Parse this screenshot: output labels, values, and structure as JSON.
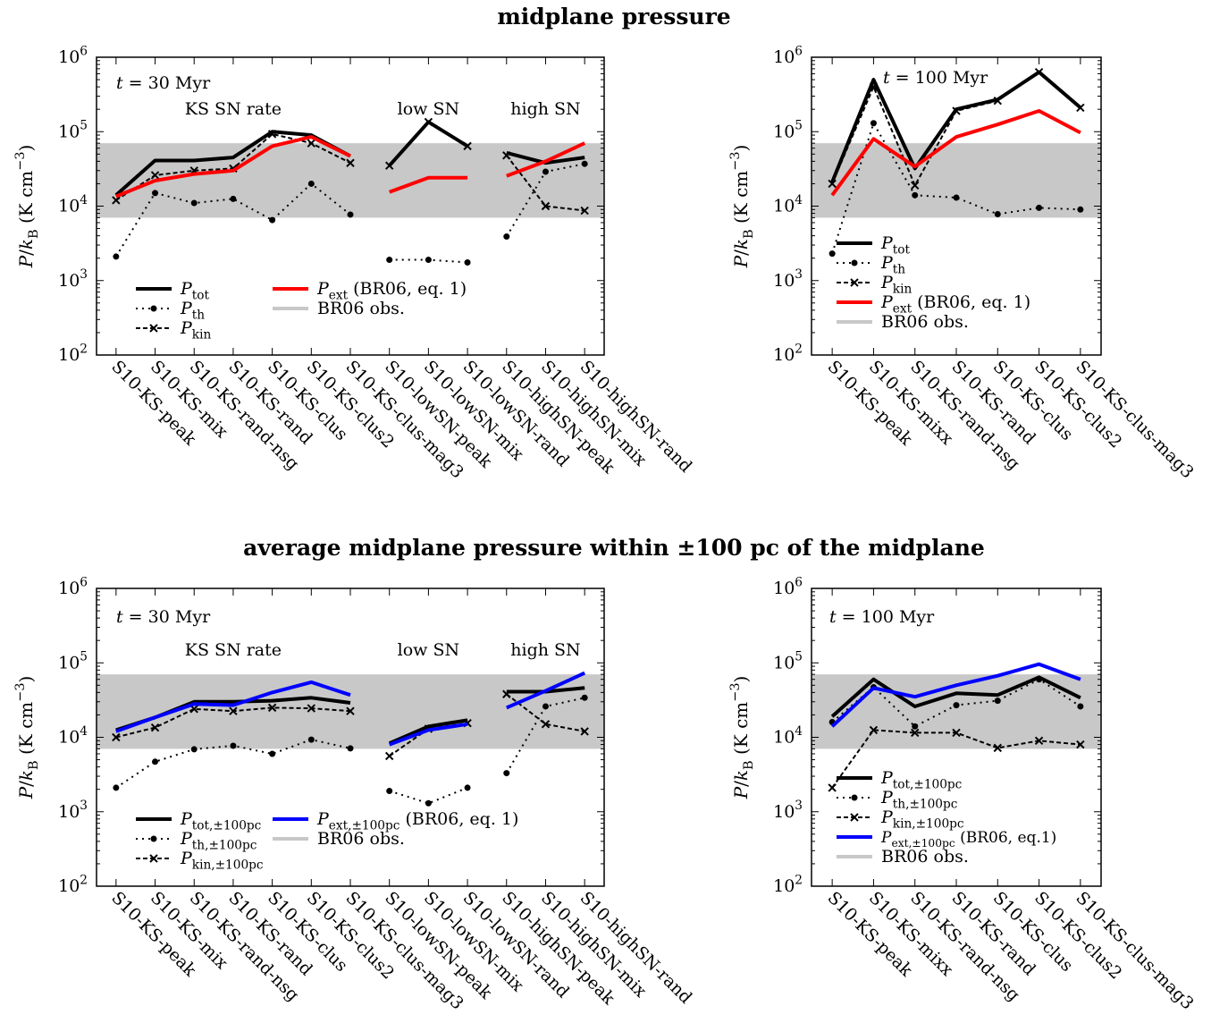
{
  "titles": {
    "top": "midplane pressure",
    "bottom": "average midplane pressure within ±100 pc of the midplane"
  },
  "colors": {
    "total": "#000000",
    "ext_top": "#ff0000",
    "ext_bottom": "#0000ff",
    "obs_band": "#c8c8c8"
  },
  "ylabel": "P/k_B (K cm^-3)",
  "yticks": [
    "10^2",
    "10^3",
    "10^4",
    "10^5",
    "10^6"
  ],
  "chart_data": [
    {
      "type": "line",
      "title": "midplane pressure",
      "panel_label": "t = 30 Myr",
      "group_labels": [
        "KS SN rate",
        "low SN",
        "high SN"
      ],
      "yscale": "log",
      "ylim": [
        100,
        1000000
      ],
      "obs_band": [
        7000,
        70000
      ],
      "categories": [
        "S10-KS-peak",
        "S10-KS-mix",
        "S10-KS-rand-nsg",
        "S10-KS-rand",
        "S10-KS-clus",
        "S10-KS-clus2",
        "S10-KS-clus-mag3",
        "S10-lowSN-peak",
        "S10-lowSN-mix",
        "S10-lowSN-rand",
        "S10-highSN-peak",
        "S10-highSN-mix",
        "S10-highSN-rand"
      ],
      "segments": [
        [
          0,
          6
        ],
        [
          7,
          9
        ],
        [
          10,
          12
        ]
      ],
      "series": [
        {
          "name": "P_tot",
          "style": "solid",
          "values": [
            14000,
            41000,
            41000,
            45000,
            100000,
            90000,
            47000,
            35000,
            135000,
            64000,
            52000,
            38000,
            45000
          ]
        },
        {
          "name": "P_th",
          "style": "dot",
          "values": [
            2100,
            15000,
            11000,
            12500,
            6500,
            20000,
            7700,
            1900,
            1900,
            1750,
            3900,
            29000,
            37000
          ]
        },
        {
          "name": "P_kin",
          "style": "dash",
          "values": [
            12000,
            26000,
            30000,
            32000,
            93000,
            70000,
            38000,
            35000,
            135000,
            64000,
            48000,
            10000,
            8700
          ]
        },
        {
          "name": "P_ext (BR06, eq. 1)",
          "style": "ext",
          "values": [
            13500,
            22000,
            27000,
            30000,
            64000,
            85000,
            47000,
            15500,
            24000,
            24000,
            25500,
            40000,
            70000
          ]
        }
      ],
      "legend": [
        "P_tot",
        "P_th",
        "P_kin",
        "P_ext (BR06, eq. 1)",
        "BR06 obs."
      ]
    },
    {
      "type": "line",
      "title": "midplane pressure",
      "panel_label": "t = 100 Myr",
      "group_labels": [],
      "yscale": "log",
      "ylim": [
        100,
        1000000
      ],
      "obs_band": [
        7000,
        70000
      ],
      "categories": [
        "S10-KS-peak",
        "S10-KS-mixx",
        "S10-KS-rand-nsg",
        "S10-KS-rand",
        "S10-KS-clus",
        "S10-KS-clus2",
        "S10-KS-clus-mag3"
      ],
      "segments": [
        [
          0,
          6
        ]
      ],
      "series": [
        {
          "name": "P_tot",
          "style": "solid",
          "values": [
            21000,
            500000,
            32000,
            200000,
            270000,
            630000,
            210000
          ]
        },
        {
          "name": "P_th",
          "style": "dot",
          "values": [
            2300,
            130000,
            14000,
            13000,
            7800,
            9500,
            9000
          ]
        },
        {
          "name": "P_kin",
          "style": "dash",
          "values": [
            20000,
            400000,
            19000,
            190000,
            260000,
            630000,
            210000
          ]
        },
        {
          "name": "P_ext (BR06, eq. 1)",
          "style": "ext",
          "values": [
            14000,
            80000,
            34000,
            85000,
            125000,
            190000,
            97000
          ]
        }
      ],
      "legend": [
        "P_tot",
        "P_th",
        "P_kin",
        "P_ext (BR06, eq. 1)",
        "BR06 obs."
      ]
    },
    {
      "type": "line",
      "title": "average midplane pressure within ±100 pc of the midplane",
      "panel_label": "t = 30 Myr",
      "group_labels": [
        "KS SN rate",
        "low SN",
        "high SN"
      ],
      "yscale": "log",
      "ylim": [
        100,
        1000000
      ],
      "obs_band": [
        7000,
        70000
      ],
      "categories": [
        "S10-KS-peak",
        "S10-KS-mix",
        "S10-KS-rand-nsg",
        "S10-KS-rand",
        "S10-KS-clus",
        "S10-KS-clus2",
        "S10-KS-clus-mag3",
        "S10-lowSN-peak",
        "S10-lowSN-mix",
        "S10-lowSN-rand",
        "S10-highSN-peak",
        "S10-highSN-mix",
        "S10-highSN-rand"
      ],
      "segments": [
        [
          0,
          6
        ],
        [
          7,
          9
        ],
        [
          10,
          12
        ]
      ],
      "series": [
        {
          "name": "P_tot,±100pc",
          "style": "solid",
          "values": [
            12500,
            18500,
            30000,
            30000,
            31000,
            34000,
            29000,
            8300,
            14000,
            17000,
            41000,
            41000,
            46000
          ]
        },
        {
          "name": "P_th,±100pc",
          "style": "dot",
          "values": [
            2100,
            4700,
            6900,
            7700,
            6000,
            9300,
            7100,
            1900,
            1300,
            2100,
            3300,
            26000,
            34000
          ]
        },
        {
          "name": "P_kin,±100pc",
          "style": "dash",
          "values": [
            10000,
            13500,
            24000,
            22500,
            25000,
            24500,
            22500,
            5600,
            13000,
            15500,
            38000,
            15000,
            12000
          ]
        },
        {
          "name": "P_ext,±100pc (BR06, eq. 1)",
          "style": "ext",
          "values": [
            12000,
            18500,
            28000,
            27000,
            40000,
            55000,
            37000,
            8000,
            12500,
            15000,
            25000,
            42000,
            73000
          ]
        }
      ],
      "legend": [
        "P_tot,±100pc",
        "P_th,±100pc",
        "P_kin,±100pc",
        "P_ext,±100pc (BR06, eq. 1)",
        "BR06 obs."
      ]
    },
    {
      "type": "line",
      "title": "average midplane pressure within ±100 pc of the midplane",
      "panel_label": "t = 100 Myr",
      "group_labels": [],
      "yscale": "log",
      "ylim": [
        100,
        1000000
      ],
      "obs_band": [
        7000,
        70000
      ],
      "categories": [
        "S10-KS-peak",
        "S10-KS-mixx",
        "S10-KS-rand-nsg",
        "S10-KS-rand",
        "S10-KS-clus",
        "S10-KS-clus2",
        "S10-KS-clus-mag3"
      ],
      "segments": [
        [
          0,
          6
        ]
      ],
      "series": [
        {
          "name": "P_tot,±100pc",
          "style": "solid",
          "values": [
            19000,
            60000,
            26000,
            39000,
            37000,
            64000,
            34000
          ]
        },
        {
          "name": "P_th,±100pc",
          "style": "dot",
          "values": [
            16000,
            47000,
            14000,
            27000,
            31000,
            60000,
            26000
          ]
        },
        {
          "name": "P_kin,±100pc",
          "style": "dash",
          "values": [
            2100,
            12500,
            11500,
            11500,
            7200,
            9000,
            8000
          ]
        },
        {
          "name": "P_ext,±100pc (BR06, eq.1)",
          "style": "ext",
          "values": [
            14000,
            46000,
            35000,
            50000,
            67000,
            96000,
            60000
          ]
        }
      ],
      "legend": [
        "P_tot,±100pc",
        "P_th,±100pc",
        "P_kin,±100pc",
        "P_ext,±100pc (BR06, eq.1)",
        "BR06 obs."
      ]
    }
  ]
}
